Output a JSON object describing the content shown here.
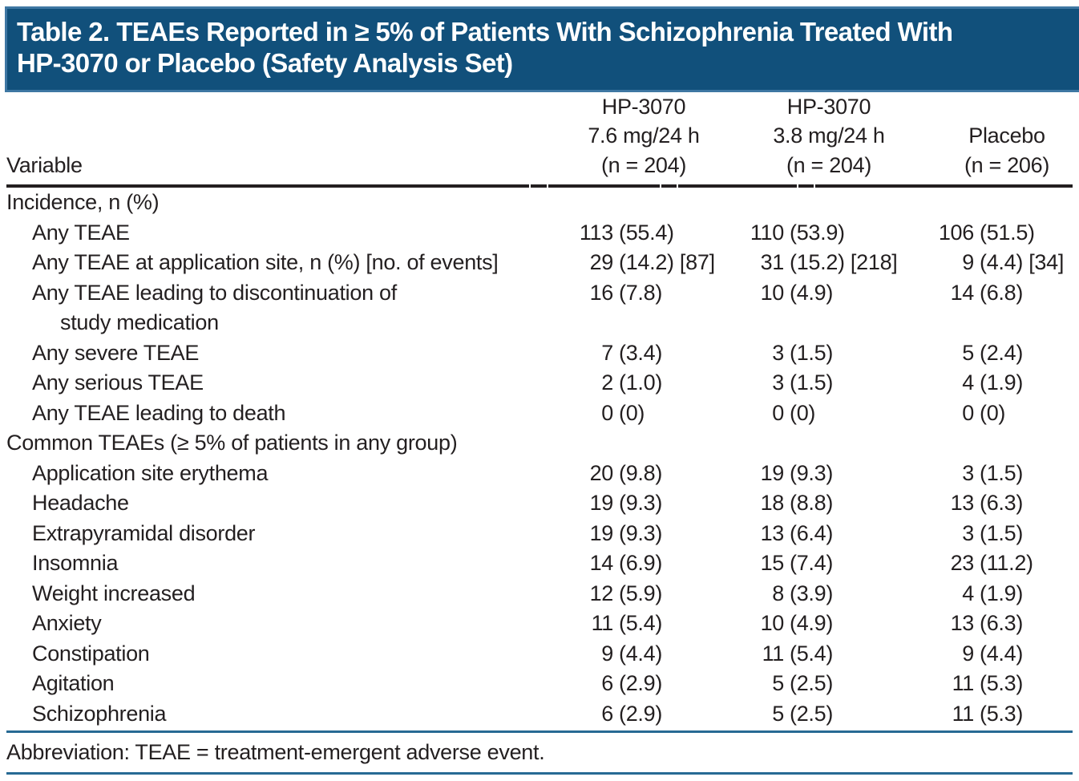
{
  "title": {
    "line1": "Table 2. TEAEs Reported in ≥ 5% of Patients With Schizophrenia Treated With",
    "line2": "HP-3070 or Placebo (Safety Analysis Set)"
  },
  "table": {
    "variable_header": "Variable",
    "columns": [
      "HP-3070\n7.6 mg/24 h\n(n = 204)",
      "HP-3070\n3.8 mg/24 h\n(n = 204)",
      "Placebo\n(n = 206)"
    ],
    "rows": [
      {
        "label": "Incidence, n (%)",
        "indent": 0,
        "values": []
      },
      {
        "label": "Any TEAE",
        "indent": 1,
        "values": [
          "113 (55.4)",
          "110 (53.9)",
          "106 (51.5)"
        ]
      },
      {
        "label": "Any TEAE at application site, n (%) [no. of events]",
        "indent": 1,
        "values": [
          "29 (14.2) [87]",
          "31 (15.2) [218]",
          "9 (4.4) [34]"
        ]
      },
      {
        "label": "Any TEAE leading to discontinuation of\nstudy medication",
        "indent": 1,
        "values": [
          "16 (7.8)",
          "10 (4.9)",
          "14 (6.8)"
        ]
      },
      {
        "label": "Any severe TEAE",
        "indent": 1,
        "values": [
          "7 (3.4)",
          "3 (1.5)",
          "5 (2.4)"
        ]
      },
      {
        "label": "Any serious TEAE",
        "indent": 1,
        "values": [
          "2 (1.0)",
          "3 (1.5)",
          "4 (1.9)"
        ]
      },
      {
        "label": "Any TEAE leading to death",
        "indent": 1,
        "values": [
          "0 (0)",
          "0 (0)",
          "0 (0)"
        ]
      },
      {
        "label": "Common TEAEs (≥ 5% of patients in any group)",
        "indent": 0,
        "values": []
      },
      {
        "label": "Application site erythema",
        "indent": 1,
        "values": [
          "20 (9.8)",
          "19 (9.3)",
          "3 (1.5)"
        ]
      },
      {
        "label": "Headache",
        "indent": 1,
        "values": [
          "19 (9.3)",
          "18 (8.8)",
          "13 (6.3)"
        ]
      },
      {
        "label": "Extrapyramidal disorder",
        "indent": 1,
        "values": [
          "19 (9.3)",
          "13 (6.4)",
          "3 (1.5)"
        ]
      },
      {
        "label": "Insomnia",
        "indent": 1,
        "values": [
          "14 (6.9)",
          "15 (7.4)",
          "23 (11.2)"
        ]
      },
      {
        "label": "Weight increased",
        "indent": 1,
        "values": [
          "12 (5.9)",
          "8 (3.9)",
          "4 (1.9)"
        ]
      },
      {
        "label": "Anxiety",
        "indent": 1,
        "values": [
          "11 (5.4)",
          "10 (4.9)",
          "13 (6.3)"
        ]
      },
      {
        "label": "Constipation",
        "indent": 1,
        "values": [
          "9 (4.4)",
          "11 (5.4)",
          "9 (4.4)"
        ]
      },
      {
        "label": "Agitation",
        "indent": 1,
        "values": [
          "6 (2.9)",
          "5 (2.5)",
          "11 (5.3)"
        ]
      },
      {
        "label": "Schizophrenia",
        "indent": 1,
        "values": [
          "6 (2.9)",
          "5 (2.5)",
          "11 (5.3)"
        ]
      }
    ]
  },
  "footnote": "Abbreviation: TEAE = treatment-emergent adverse event.",
  "colors": {
    "banner_bg": "#11507b",
    "banner_border": "#3e77a3",
    "rule_blue": "#276a94",
    "rule_black": "#231f20",
    "text": "#231f20",
    "title_text": "#ffffff"
  }
}
